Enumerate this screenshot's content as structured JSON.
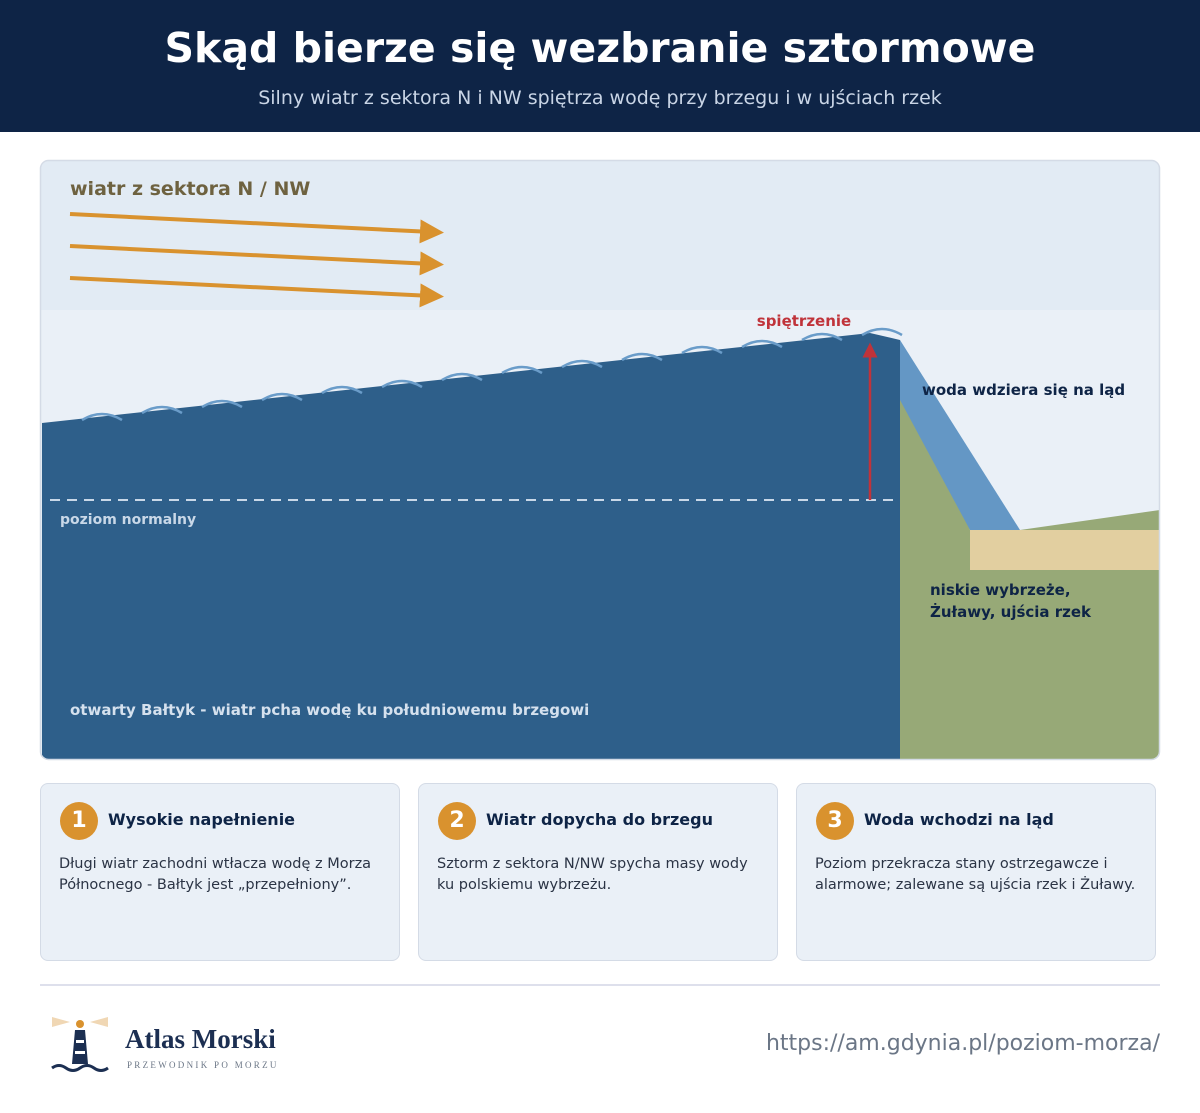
{
  "header": {
    "title": "Skąd bierze się wezbranie sztormowe",
    "subtitle": "Silny wiatr z sektora N i NW spiętrza wodę przy brzegu i w ujściach rzek"
  },
  "diagram": {
    "wind_label": "wiatr z sektora N / NW",
    "surge_label": "spiętrzenie",
    "inundation_label": "woda wdziera się na ląd",
    "normal_level_label": "poziom normalny",
    "lowland_label": [
      "niskie wybrzeże,",
      "Żuławy, ujścia rzek"
    ],
    "sea_label": "otwarty Bałtyk - wiatr pcha wodę ku południowemu brzegowi"
  },
  "steps": [
    {
      "number": 1,
      "title": "Wysokie napełnienie",
      "text": "Długi wiatr zachodni wtłacza wodę z Morza Północnego - Bałtyk jest „przepełniony”."
    },
    {
      "number": 2,
      "title": "Wiatr dopycha do brzegu",
      "text": "Sztorm z sektora N/NW spycha masy wody ku polskiemu wybrzeżu."
    },
    {
      "number": 3,
      "title": "Woda wchodzi na ląd",
      "text": "Poziom przekracza stany ostrzegawcze i alarmowe; zalewane są ujścia rzek i Żuławy."
    }
  ],
  "footer": {
    "brand": "Atlas Morski",
    "tagline": "PRZEWODNIK PO MORZU",
    "url": "https://am.gdynia.pl/poziom-morza/"
  }
}
